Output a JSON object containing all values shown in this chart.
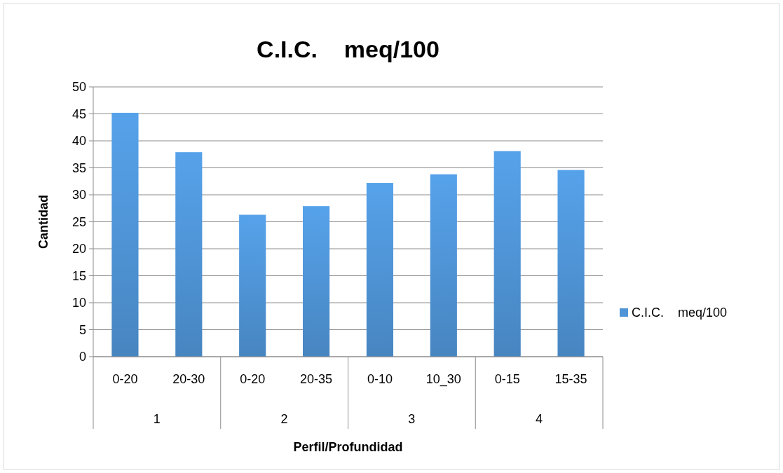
{
  "chart_data": {
    "type": "bar",
    "title": "C.I.C.    meq/100",
    "xlabel": "Perfil/Profundidad",
    "ylabel": "Cantidad",
    "categories": [
      "0-20",
      "20-30",
      "0-20",
      "20-35",
      "0-10",
      "10_30",
      "0-15",
      "15-35"
    ],
    "annotations": [
      "1",
      "2",
      "3",
      "4"
    ],
    "series": [
      {
        "name": "C.I.C.    meq/100",
        "color": "#4f94d6",
        "values": [
          45.2,
          37.9,
          26.3,
          27.9,
          32.2,
          33.8,
          38.1,
          34.6
        ]
      }
    ],
    "ylim": [
      0,
      50
    ],
    "yticks": [
      0,
      5,
      10,
      15,
      20,
      25,
      30,
      35,
      40,
      45,
      50
    ],
    "grid": "y",
    "legend": "right"
  }
}
